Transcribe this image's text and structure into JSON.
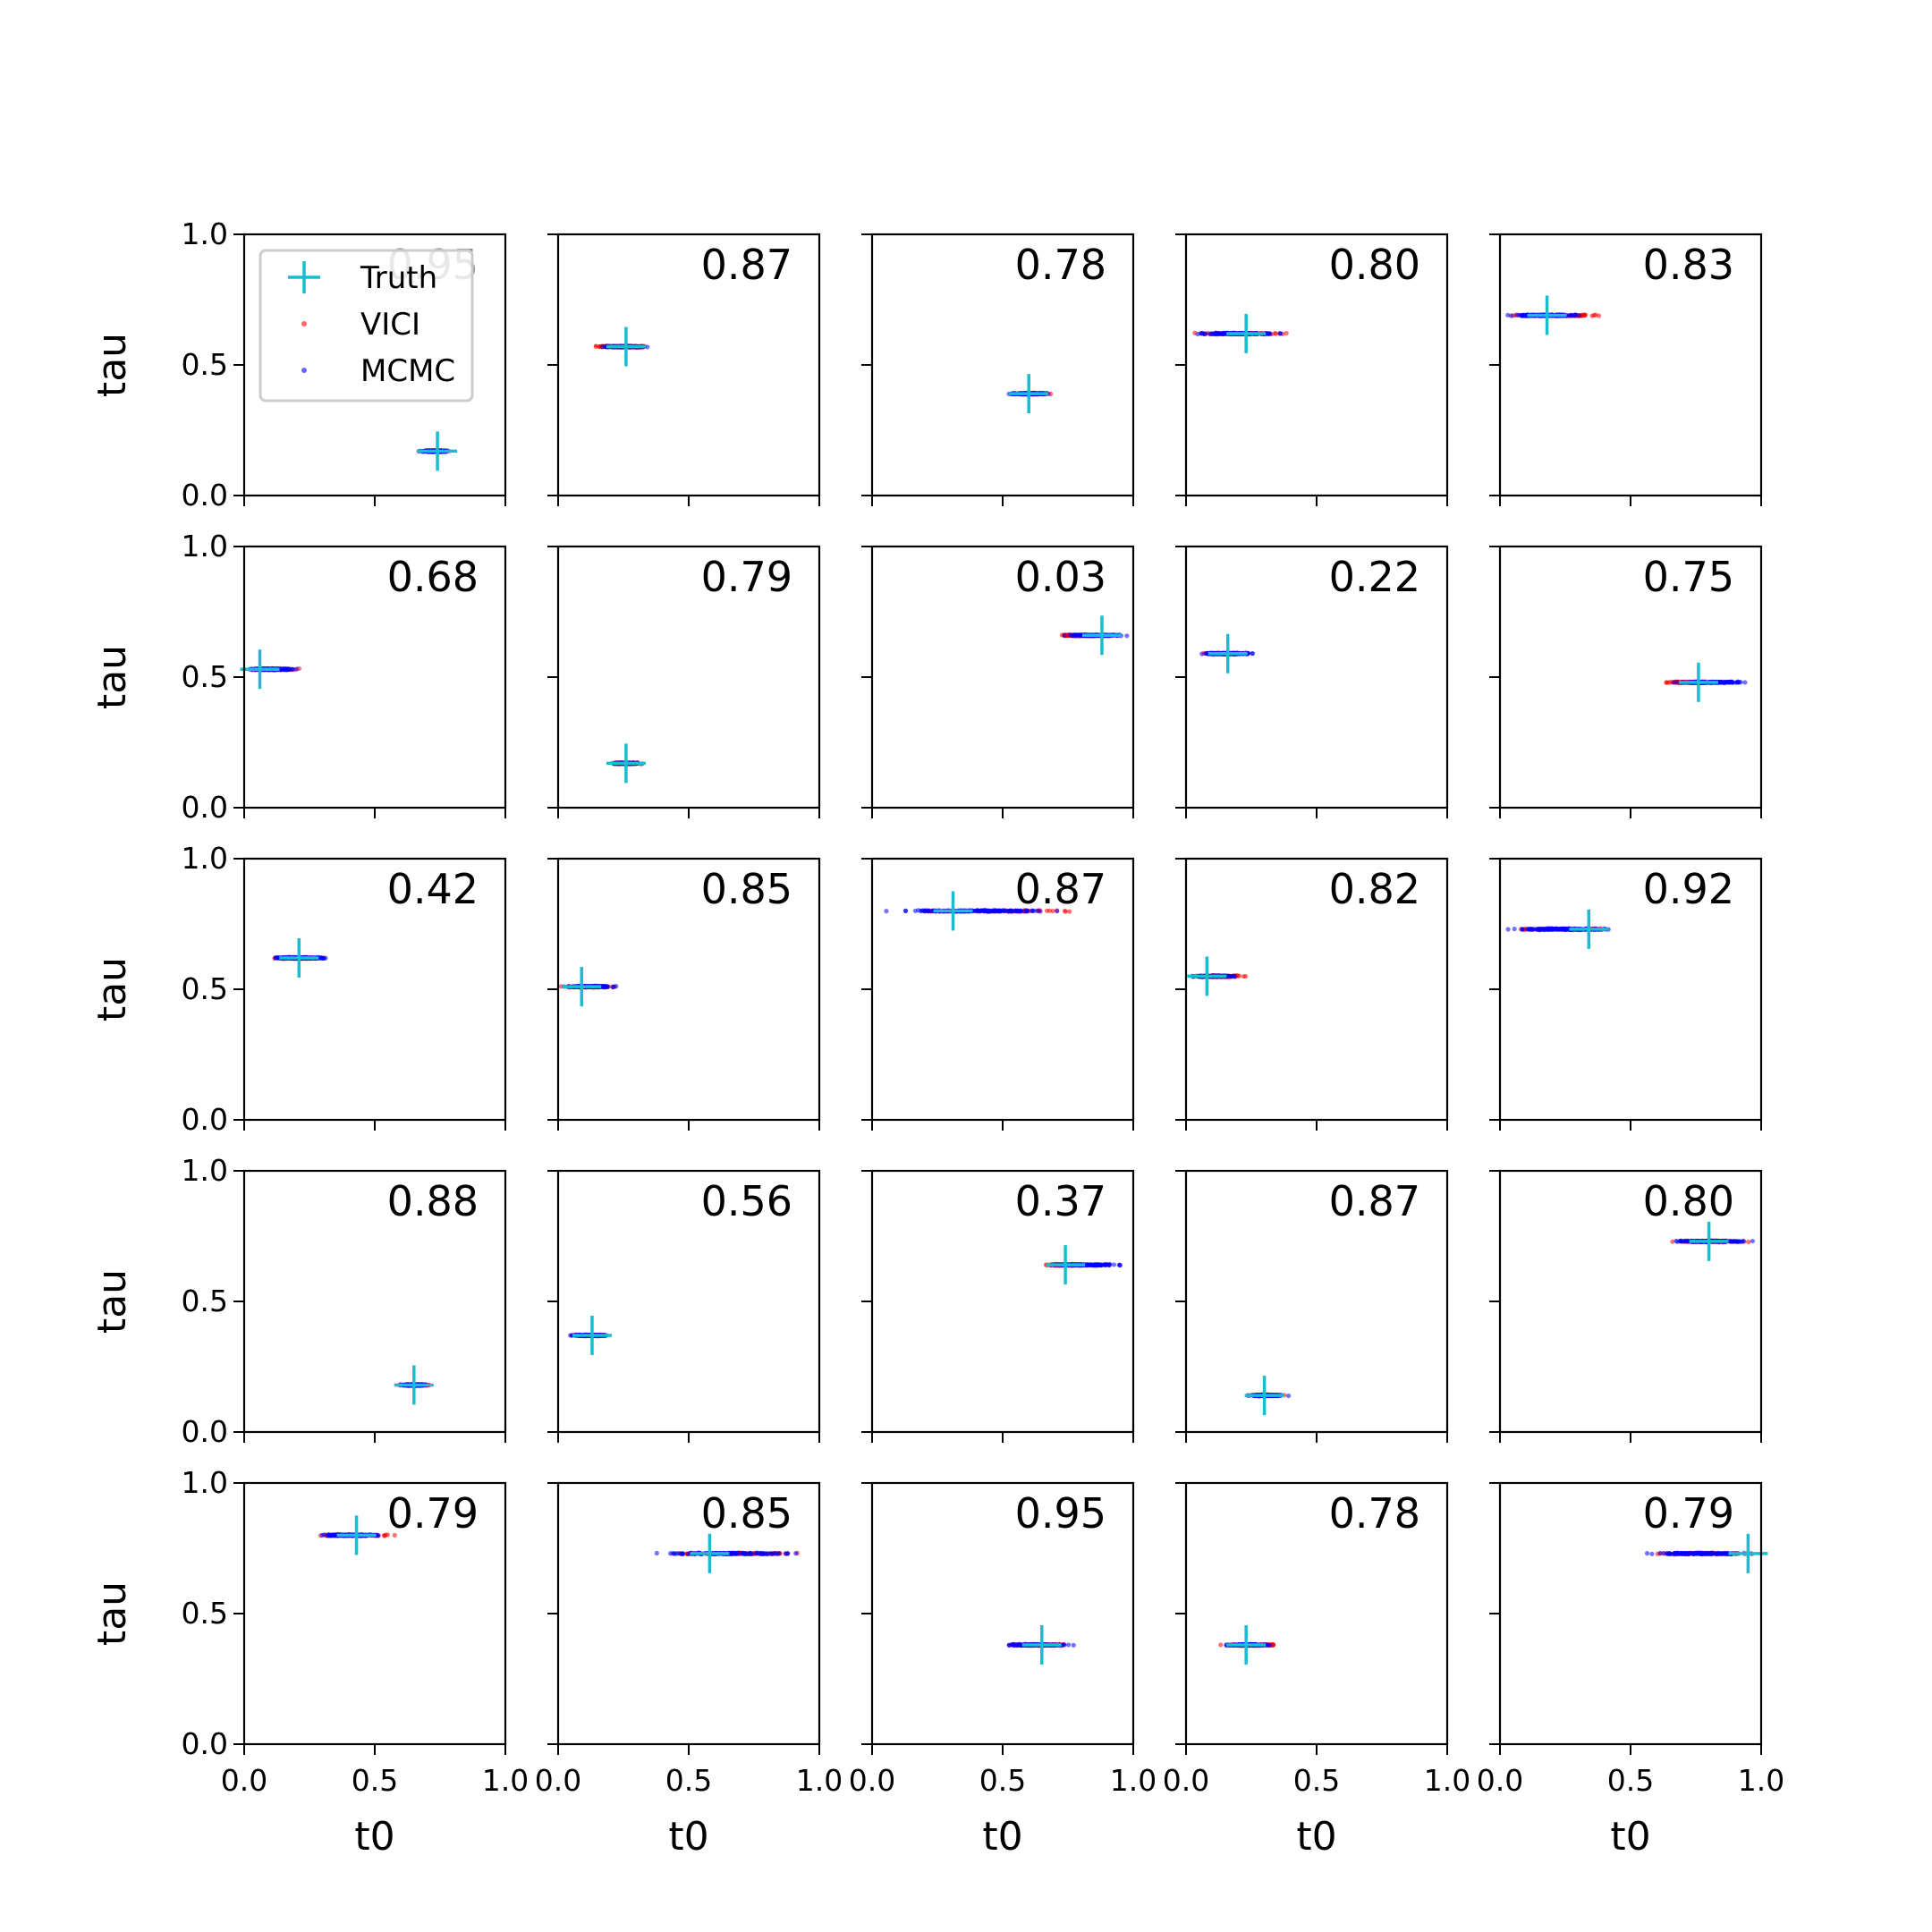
{
  "legend": {
    "entries": [
      {
        "label": "Truth",
        "marker": "plus",
        "color": "#17becf"
      },
      {
        "label": "VICI",
        "marker": "dot",
        "color": "#ff0000"
      },
      {
        "label": "MCMC",
        "marker": "dot",
        "color": "#0000ff"
      }
    ]
  },
  "colors": {
    "truth": "#17becf",
    "vici": "#ff0000",
    "mcmc": "#0000ff"
  },
  "chart_data": {
    "type": "scatter",
    "layout": "5x5 grid of panels",
    "xlabel": "t0",
    "ylabel": "tau",
    "xlim": [
      0,
      1
    ],
    "ylim": [
      0,
      1
    ],
    "xticks": [
      "0.0",
      "0.5",
      "1.0"
    ],
    "yticks": [
      "0.0",
      "0.5",
      "1.0"
    ],
    "series": [
      {
        "name": "Truth",
        "marker": "plus"
      },
      {
        "name": "VICI",
        "marker": "dot"
      },
      {
        "name": "MCMC",
        "marker": "dot"
      }
    ],
    "panels": [
      {
        "score": "0.95",
        "truth": [
          0.74,
          0.17
        ],
        "vici_t0": [
          0.68,
          0.79
        ],
        "mcmc_t0": [
          0.66,
          0.79
        ],
        "tau": 0.17
      },
      {
        "score": "0.87",
        "truth": [
          0.26,
          0.57
        ],
        "vici_t0": [
          0.12,
          0.38
        ],
        "mcmc_t0": [
          0.13,
          0.36
        ],
        "tau": 0.57
      },
      {
        "score": "0.78",
        "truth": [
          0.6,
          0.39
        ],
        "vici_t0": [
          0.53,
          0.7
        ],
        "mcmc_t0": [
          0.51,
          0.69
        ],
        "tau": 0.39
      },
      {
        "score": "0.80",
        "truth": [
          0.23,
          0.62
        ],
        "vici_t0": [
          0.0,
          0.42
        ],
        "mcmc_t0": [
          0.0,
          0.4
        ],
        "tau": 0.62
      },
      {
        "score": "0.83",
        "truth": [
          0.18,
          0.69
        ],
        "vici_t0": [
          0.0,
          0.41
        ],
        "mcmc_t0": [
          0.0,
          0.33
        ],
        "tau": 0.69
      },
      {
        "score": "0.68",
        "truth": [
          0.06,
          0.53
        ],
        "vici_t0": [
          0.0,
          0.23
        ],
        "mcmc_t0": [
          0.0,
          0.22
        ],
        "tau": 0.53
      },
      {
        "score": "0.79",
        "truth": [
          0.26,
          0.17
        ],
        "vici_t0": [
          0.19,
          0.33
        ],
        "mcmc_t0": [
          0.19,
          0.33
        ],
        "tau": 0.17
      },
      {
        "score": "0.03",
        "truth": [
          0.88,
          0.66
        ],
        "vici_t0": [
          0.7,
          0.88
        ],
        "mcmc_t0": [
          0.72,
          0.99
        ],
        "tau": 0.66
      },
      {
        "score": "0.22",
        "truth": [
          0.16,
          0.59
        ],
        "vici_t0": [
          0.04,
          0.26
        ],
        "mcmc_t0": [
          0.04,
          0.27
        ],
        "tau": 0.59
      },
      {
        "score": "0.75",
        "truth": [
          0.76,
          0.48
        ],
        "vici_t0": [
          0.62,
          0.85
        ],
        "mcmc_t0": [
          0.63,
          0.99
        ],
        "tau": 0.48
      },
      {
        "score": "0.42",
        "truth": [
          0.21,
          0.62
        ],
        "vici_t0": [
          0.1,
          0.33
        ],
        "mcmc_t0": [
          0.09,
          0.34
        ],
        "tau": 0.62
      },
      {
        "score": "0.85",
        "truth": [
          0.09,
          0.51
        ],
        "vici_t0": [
          0.0,
          0.24
        ],
        "mcmc_t0": [
          0.0,
          0.25
        ],
        "tau": 0.51
      },
      {
        "score": "0.87",
        "truth": [
          0.31,
          0.8
        ],
        "vici_t0": [
          0.0,
          0.83
        ],
        "mcmc_t0": [
          0.0,
          0.79
        ],
        "tau": 0.8
      },
      {
        "score": "0.82",
        "truth": [
          0.08,
          0.55
        ],
        "vici_t0": [
          0.0,
          0.25
        ],
        "mcmc_t0": [
          0.0,
          0.21
        ],
        "tau": 0.55
      },
      {
        "score": "0.92",
        "truth": [
          0.34,
          0.73
        ],
        "vici_t0": [
          0.0,
          0.5
        ],
        "mcmc_t0": [
          0.0,
          0.47
        ],
        "tau": 0.73
      },
      {
        "score": "0.88",
        "truth": [
          0.65,
          0.18
        ],
        "vici_t0": [
          0.59,
          0.72
        ],
        "mcmc_t0": [
          0.59,
          0.71
        ],
        "tau": 0.18
      },
      {
        "score": "0.56",
        "truth": [
          0.13,
          0.37
        ],
        "vici_t0": [
          0.03,
          0.22
        ],
        "mcmc_t0": [
          0.03,
          0.21
        ],
        "tau": 0.37
      },
      {
        "score": "0.37",
        "truth": [
          0.74,
          0.64
        ],
        "vici_t0": [
          0.65,
          0.8
        ],
        "mcmc_t0": [
          0.66,
          0.99
        ],
        "tau": 0.64
      },
      {
        "score": "0.87",
        "truth": [
          0.3,
          0.14
        ],
        "vici_t0": [
          0.23,
          0.38
        ],
        "mcmc_t0": [
          0.23,
          0.4
        ],
        "tau": 0.14
      },
      {
        "score": "0.80",
        "truth": [
          0.8,
          0.73
        ],
        "vici_t0": [
          0.63,
          0.97
        ],
        "mcmc_t0": [
          0.63,
          1.0
        ],
        "tau": 0.73
      },
      {
        "score": "0.79",
        "truth": [
          0.43,
          0.8
        ],
        "vici_t0": [
          0.25,
          0.59
        ],
        "mcmc_t0": [
          0.25,
          0.56
        ],
        "tau": 0.8
      },
      {
        "score": "0.85",
        "truth": [
          0.58,
          0.73
        ],
        "vici_t0": [
          0.4,
          0.99
        ],
        "mcmc_t0": [
          0.3,
          0.96
        ],
        "tau": 0.73
      },
      {
        "score": "0.95",
        "truth": [
          0.65,
          0.38
        ],
        "vici_t0": [
          0.48,
          0.8
        ],
        "mcmc_t0": [
          0.47,
          0.79
        ],
        "tau": 0.38
      },
      {
        "score": "0.78",
        "truth": [
          0.23,
          0.38
        ],
        "vici_t0": [
          0.12,
          0.38
        ],
        "mcmc_t0": [
          0.13,
          0.35
        ],
        "tau": 0.38
      },
      {
        "score": "0.79",
        "truth": [
          0.95,
          0.73
        ],
        "vici_t0": [
          0.55,
          1.0
        ],
        "mcmc_t0": [
          0.52,
          1.0
        ],
        "tau": 0.73
      }
    ]
  }
}
